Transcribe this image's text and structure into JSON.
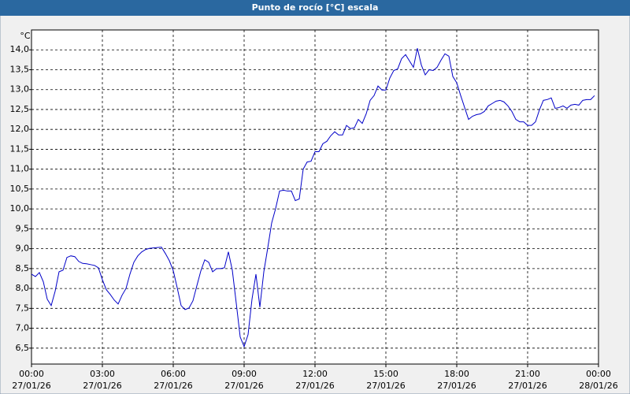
{
  "chart_data": {
    "type": "line",
    "title": "Punto de rocío [°C] escala",
    "y_unit": "°C",
    "color": "#0000c8",
    "grid": true,
    "xlim": [
      0,
      1440
    ],
    "ylim": [
      6.1,
      14.5
    ],
    "xticks": [
      {
        "value": 0,
        "label": "00:00"
      },
      {
        "value": 180,
        "label": "03:00"
      },
      {
        "value": 360,
        "label": "06:00"
      },
      {
        "value": 540,
        "label": "09:00"
      },
      {
        "value": 720,
        "label": "12:00"
      },
      {
        "value": 900,
        "label": "15:00"
      },
      {
        "value": 1080,
        "label": "18:00"
      },
      {
        "value": 1260,
        "label": "21:00"
      },
      {
        "value": 1440,
        "label": "00:00"
      }
    ],
    "xtick_dates": [
      "27/01/26",
      "27/01/26",
      "27/01/26",
      "27/01/26",
      "27/01/26",
      "27/01/26",
      "27/01/26",
      "27/01/26",
      "28/01/26"
    ],
    "yticks": [
      {
        "value": 6.5,
        "label": "6,5"
      },
      {
        "value": 7,
        "label": "7,0"
      },
      {
        "value": 7.5,
        "label": "7,5"
      },
      {
        "value": 8,
        "label": "8,0"
      },
      {
        "value": 8.5,
        "label": "8,5"
      },
      {
        "value": 9,
        "label": "9,0"
      },
      {
        "value": 9.5,
        "label": "9,5"
      },
      {
        "value": 10,
        "label": "10,0"
      },
      {
        "value": 10.5,
        "label": "10,5"
      },
      {
        "value": 11,
        "label": "11,0"
      },
      {
        "value": 11.5,
        "label": "11,5"
      },
      {
        "value": 12,
        "label": "12,0"
      },
      {
        "value": 12.5,
        "label": "12,5"
      },
      {
        "value": 13,
        "label": "13,0"
      },
      {
        "value": 13.5,
        "label": "13,5"
      },
      {
        "value": 14,
        "label": "14,0"
      }
    ],
    "x": [
      0,
      10,
      20,
      30,
      40,
      50,
      60,
      70,
      80,
      90,
      100,
      110,
      120,
      130,
      140,
      150,
      160,
      170,
      180,
      190,
      200,
      210,
      220,
      230,
      240,
      250,
      260,
      270,
      280,
      290,
      300,
      310,
      320,
      330,
      340,
      350,
      360,
      370,
      380,
      390,
      400,
      410,
      420,
      430,
      440,
      450,
      460,
      470,
      480,
      490,
      500,
      510,
      520,
      530,
      540,
      550,
      560,
      570,
      580,
      590,
      600,
      610,
      620,
      630,
      640,
      650,
      660,
      670,
      680,
      690,
      700,
      710,
      720,
      730,
      740,
      750,
      760,
      770,
      780,
      790,
      800,
      810,
      820,
      830,
      840,
      850,
      860,
      870,
      880,
      890,
      900,
      910,
      920,
      930,
      940,
      950,
      960,
      970,
      980,
      990,
      1000,
      1010,
      1020,
      1030,
      1040,
      1050,
      1060,
      1070,
      1080,
      1090,
      1100,
      1110,
      1120,
      1130,
      1140,
      1150,
      1160,
      1170,
      1180,
      1190,
      1200,
      1210,
      1220,
      1230,
      1240,
      1250,
      1260,
      1270,
      1280,
      1290,
      1300,
      1310,
      1320,
      1330,
      1340,
      1350,
      1360,
      1370,
      1380,
      1390,
      1400,
      1410,
      1420,
      1430
    ],
    "values": [
      8.36,
      8.3,
      8.4,
      8.17,
      7.73,
      7.57,
      7.93,
      8.42,
      8.46,
      8.78,
      8.82,
      8.8,
      8.68,
      8.63,
      8.62,
      8.6,
      8.58,
      8.52,
      8.22,
      7.97,
      7.85,
      7.71,
      7.61,
      7.83,
      8.0,
      8.36,
      8.66,
      8.82,
      8.92,
      8.98,
      9.01,
      9.02,
      9.03,
      9.04,
      8.88,
      8.7,
      8.45,
      8.02,
      7.57,
      7.47,
      7.51,
      7.69,
      8.07,
      8.44,
      8.72,
      8.66,
      8.42,
      8.5,
      8.5,
      8.52,
      8.92,
      8.46,
      7.63,
      6.78,
      6.54,
      6.84,
      7.73,
      8.36,
      7.53,
      8.42,
      9.02,
      9.65,
      10.01,
      10.45,
      10.47,
      10.45,
      10.45,
      10.21,
      10.25,
      11.0,
      11.18,
      11.2,
      11.44,
      11.44,
      11.64,
      11.7,
      11.84,
      11.94,
      11.86,
      11.86,
      12.1,
      12.02,
      12.04,
      12.25,
      12.15,
      12.39,
      12.73,
      12.85,
      13.09,
      12.99,
      12.99,
      13.29,
      13.48,
      13.52,
      13.78,
      13.88,
      13.72,
      13.56,
      14.04,
      13.62,
      13.37,
      13.5,
      13.48,
      13.56,
      13.74,
      13.9,
      13.84,
      13.33,
      13.17,
      12.85,
      12.55,
      12.25,
      12.33,
      12.37,
      12.39,
      12.45,
      12.59,
      12.65,
      12.71,
      12.73,
      12.69,
      12.59,
      12.45,
      12.25,
      12.19,
      12.19,
      12.1,
      12.1,
      12.19,
      12.49,
      12.73,
      12.75,
      12.79,
      12.53,
      12.55,
      12.59,
      12.53,
      12.61,
      12.63,
      12.61,
      12.73,
      12.75,
      12.75,
      12.85
    ]
  }
}
